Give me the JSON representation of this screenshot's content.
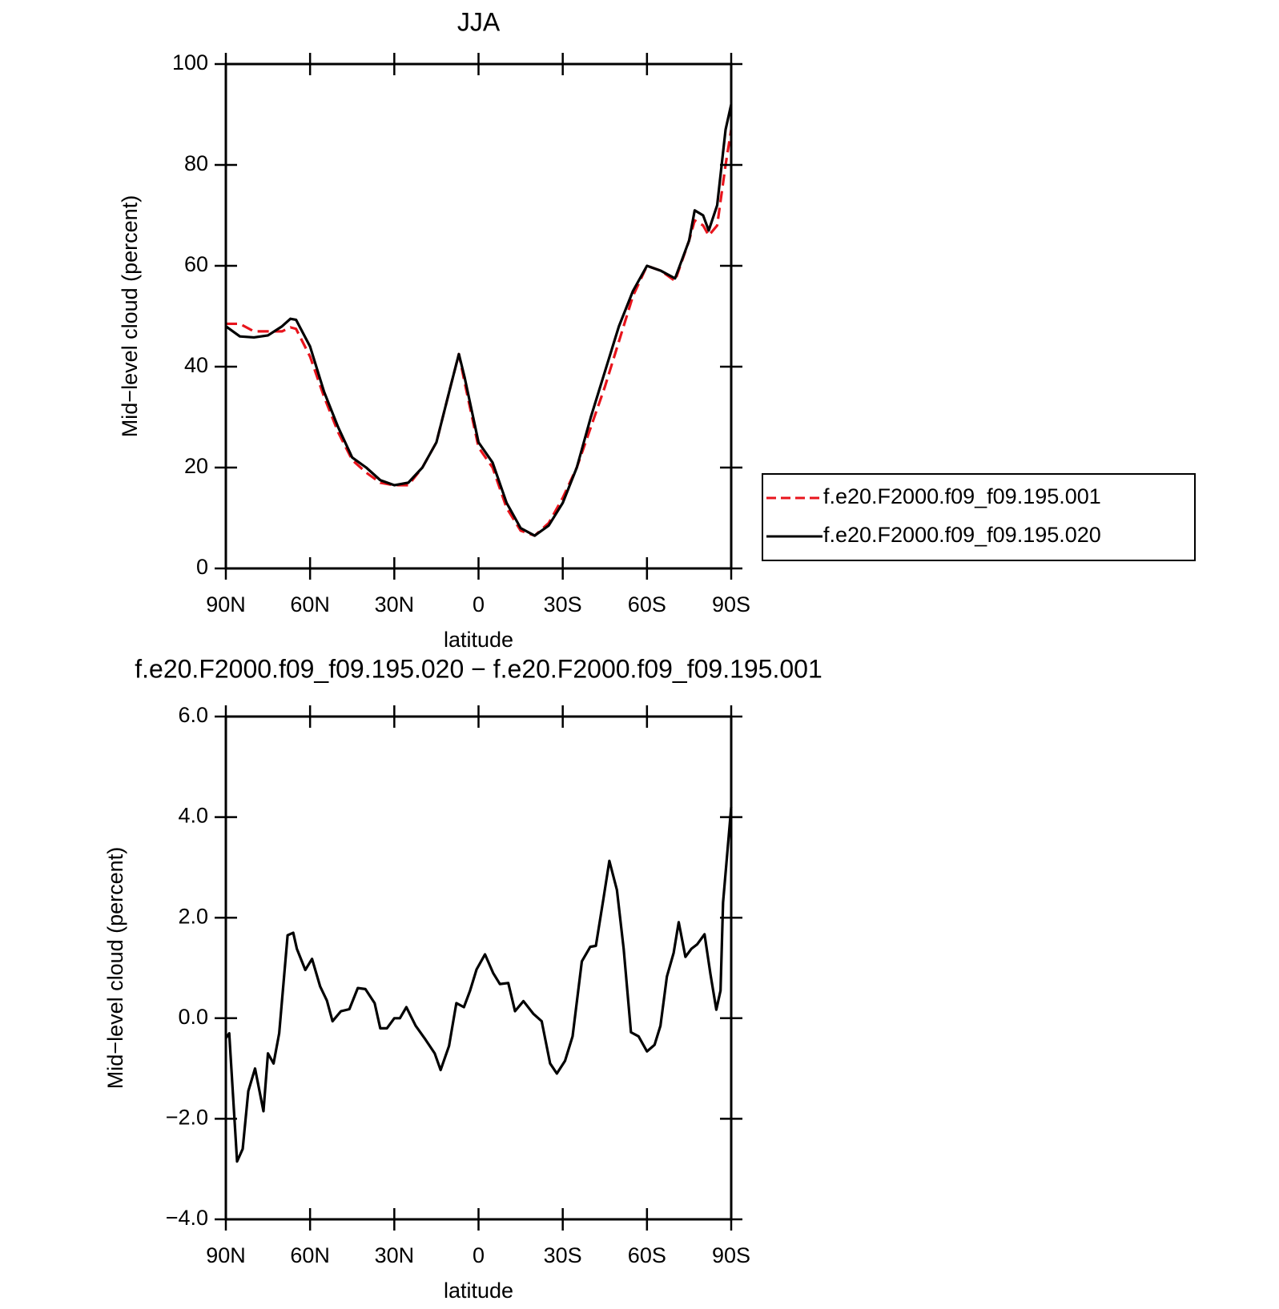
{
  "chart_data": [
    {
      "type": "line",
      "title": "JJA",
      "xlabel": "latitude",
      "ylabel": "Mid−level cloud (percent)",
      "xlim": [
        90,
        -90
      ],
      "ylim": [
        0,
        100
      ],
      "xticks": [
        {
          "value": 90,
          "label": "90N"
        },
        {
          "value": 60,
          "label": "60N"
        },
        {
          "value": 30,
          "label": "30N"
        },
        0,
        {
          "value": -30,
          "label": "30S"
        },
        {
          "value": -60,
          "label": "60S"
        },
        {
          "value": -90,
          "label": "90S"
        }
      ],
      "yticks": [
        0,
        20,
        40,
        60,
        80,
        100
      ],
      "legend": "outside right",
      "x": [
        90,
        85,
        80,
        75,
        70,
        67,
        65,
        60,
        55,
        50,
        45,
        40,
        35,
        30,
        25,
        20,
        15,
        10,
        7,
        5,
        0,
        -5,
        -10,
        -15,
        -20,
        -25,
        -30,
        -35,
        -40,
        -45,
        -50,
        -55,
        -60,
        -65,
        -70,
        -75,
        -77,
        -80,
        -82,
        -85,
        -88,
        -90
      ],
      "series": [
        {
          "name": "f.e20.F2000.f09_f09.195.001",
          "color": "#e8141c",
          "line_style": "dashed",
          "values": [
            48.5,
            48.5,
            47,
            47,
            47,
            47.8,
            47.5,
            42,
            34,
            27,
            21.5,
            19,
            17,
            16.5,
            16.5,
            20,
            25,
            36,
            42.5,
            37,
            24,
            20,
            12,
            7.5,
            6.5,
            9,
            14,
            20,
            28,
            36,
            45,
            54,
            60,
            59,
            57,
            65,
            69,
            68,
            66,
            68,
            80,
            87
          ]
        },
        {
          "name": "f.e20.F2000.f09_f09.195.020",
          "color": "#000000",
          "line_style": "solid",
          "values": [
            48,
            46,
            45.8,
            46.2,
            48,
            49.5,
            49.3,
            44,
            35,
            28,
            22,
            20,
            17.5,
            16.5,
            17,
            20,
            25,
            36,
            42.5,
            38,
            25,
            21,
            13,
            8,
            6.5,
            8.5,
            13,
            20,
            30,
            39,
            48,
            55,
            60,
            59,
            57.5,
            65,
            71,
            70,
            67,
            72,
            87,
            92
          ]
        }
      ]
    },
    {
      "type": "line",
      "title": "f.e20.F2000.f09_f09.195.020 − f.e20.F2000.f09_f09.195.001",
      "xlabel": "latitude",
      "ylabel": "Mid−level cloud (percent)",
      "xlim": [
        90,
        -90
      ],
      "ylim": [
        -4,
        6
      ],
      "xticks": [
        {
          "value": 90,
          "label": "90N"
        },
        {
          "value": 60,
          "label": "60N"
        },
        {
          "value": 30,
          "label": "30N"
        },
        0,
        {
          "value": -30,
          "label": "30S"
        },
        {
          "value": -60,
          "label": "60S"
        },
        {
          "value": -90,
          "label": "90S"
        }
      ],
      "yticks": [
        {
          "value": -4,
          "label": "−4.0"
        },
        {
          "value": -2,
          "label": "−2.0"
        },
        {
          "value": 0,
          "label": "0.0"
        },
        {
          "value": 2,
          "label": "2.0"
        },
        {
          "value": 4,
          "label": "4.0"
        },
        {
          "value": 6,
          "label": "6.0"
        }
      ],
      "x": [
        90,
        88.8,
        86,
        84,
        82,
        79.6,
        76.6,
        75,
        73,
        71,
        68,
        66,
        64.7,
        61.7,
        59.3,
        56.4,
        54,
        52,
        49,
        46,
        43,
        40.3,
        37,
        35,
        32.6,
        30,
        28,
        25.7,
        22.4,
        19.2,
        15.6,
        13.5,
        10.5,
        7.9,
        5.2,
        3,
        0.7,
        -2.3,
        -5.2,
        -7.6,
        -10.6,
        -13,
        -16,
        -19.5,
        -22.5,
        -25.5,
        -27.9,
        -30.8,
        -33.5,
        -36.8,
        -39.8,
        -41.8,
        -44.5,
        -46.6,
        -49.3,
        -51.7,
        -54.3,
        -57,
        -60,
        -62.7,
        -64.8,
        -67.1,
        -69.5,
        -71.3,
        -73.7,
        -75.8,
        -77.9,
        -80.5,
        -82.6,
        -84.7,
        -86.2,
        -87.1,
        -90
      ],
      "series": [
        {
          "color": "#000000",
          "line_style": "solid",
          "values": [
            -0.4,
            -0.3,
            -2.85,
            -2.6,
            -1.45,
            -1.0,
            -1.85,
            -0.7,
            -0.9,
            -0.3,
            1.65,
            1.7,
            1.38,
            0.96,
            1.18,
            0.63,
            0.35,
            -0.06,
            0.14,
            0.18,
            0.6,
            0.58,
            0.3,
            -0.2,
            -0.2,
            0.0,
            0.0,
            0.22,
            -0.15,
            -0.4,
            -0.7,
            -1.03,
            -0.55,
            0.3,
            0.22,
            0.55,
            0.97,
            1.27,
            0.9,
            0.68,
            0.7,
            0.14,
            0.34,
            0.09,
            -0.06,
            -0.9,
            -1.1,
            -0.85,
            -0.36,
            1.13,
            1.42,
            1.44,
            2.38,
            3.13,
            2.55,
            1.38,
            -0.28,
            -0.36,
            -0.66,
            -0.53,
            -0.15,
            0.83,
            1.3,
            1.91,
            1.22,
            1.38,
            1.47,
            1.67,
            0.88,
            0.17,
            0.55,
            2.3,
            4.2
          ]
        }
      ]
    }
  ]
}
